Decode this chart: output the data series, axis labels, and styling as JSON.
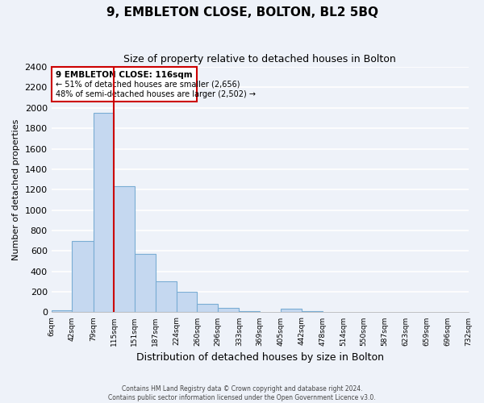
{
  "title": "9, EMBLETON CLOSE, BOLTON, BL2 5BQ",
  "subtitle": "Size of property relative to detached houses in Bolton",
  "xlabel": "Distribution of detached houses by size in Bolton",
  "ylabel": "Number of detached properties",
  "bin_edges": [
    6,
    42,
    79,
    115,
    151,
    187,
    224,
    260,
    296,
    333,
    369,
    405,
    442,
    478,
    514,
    550,
    587,
    623,
    659,
    696,
    732
  ],
  "bin_labels": [
    "6sqm",
    "42sqm",
    "79sqm",
    "115sqm",
    "151sqm",
    "187sqm",
    "224sqm",
    "260sqm",
    "296sqm",
    "333sqm",
    "369sqm",
    "405sqm",
    "442sqm",
    "478sqm",
    "514sqm",
    "550sqm",
    "587sqm",
    "623sqm",
    "659sqm",
    "696sqm",
    "732sqm"
  ],
  "counts": [
    20,
    700,
    1950,
    1230,
    575,
    300,
    200,
    80,
    40,
    10,
    5,
    35,
    10,
    5,
    5,
    0,
    0,
    0,
    0,
    5
  ],
  "bar_color": "#c5d8f0",
  "bar_edge_color": "#7aadd4",
  "property_line_x": 115,
  "property_line_color": "#cc0000",
  "annotation_title": "9 EMBLETON CLOSE: 116sqm",
  "annotation_line1": "← 51% of detached houses are smaller (2,656)",
  "annotation_line2": "48% of semi-detached houses are larger (2,502) →",
  "annotation_box_color": "#ffffff",
  "annotation_box_edge_color": "#cc0000",
  "ylim": [
    0,
    2400
  ],
  "yticks": [
    0,
    200,
    400,
    600,
    800,
    1000,
    1200,
    1400,
    1600,
    1800,
    2000,
    2200,
    2400
  ],
  "footer_line1": "Contains HM Land Registry data © Crown copyright and database right 2024.",
  "footer_line2": "Contains public sector information licensed under the Open Government Licence v3.0.",
  "bg_color": "#eef2f9",
  "grid_color": "#ffffff"
}
